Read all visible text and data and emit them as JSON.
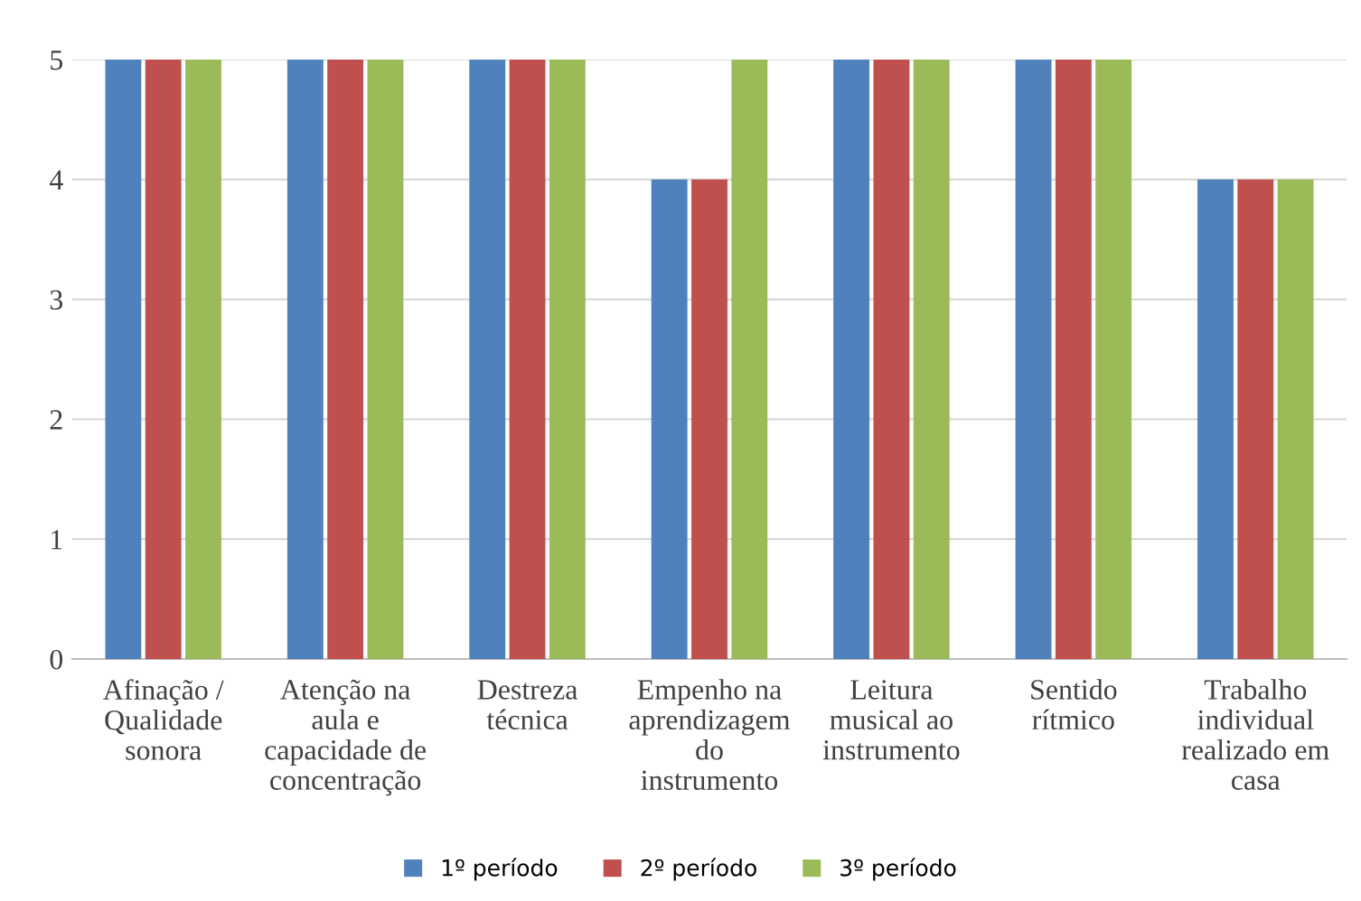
{
  "chart_data": {
    "type": "bar",
    "categories": [
      "Afinação /\nQualidade\nsonora",
      "Atenção na\naula e\ncapacidade de\nconcentração",
      "Destreza\ntécnica",
      "Empenho na\naprendizagem\ndo\ninstrumento",
      "Leitura\nmusical ao\ninstrumento",
      "Sentido\nrítmico",
      "Trabalho\nindividual\nrealizado em\ncasa"
    ],
    "series": [
      {
        "name": "1º período",
        "color": "#4f81bd",
        "values": [
          5,
          5,
          5,
          4,
          5,
          5,
          4
        ]
      },
      {
        "name": "2º período",
        "color": "#c0504d",
        "values": [
          5,
          5,
          5,
          4,
          5,
          5,
          4
        ]
      },
      {
        "name": "3º período",
        "color": "#9bbb59",
        "values": [
          5,
          5,
          5,
          5,
          5,
          5,
          4
        ]
      }
    ],
    "ylim": [
      0,
      5
    ],
    "yticks": [
      0,
      1,
      2,
      3,
      4,
      5
    ],
    "grid": "y",
    "legend": "bottom"
  }
}
